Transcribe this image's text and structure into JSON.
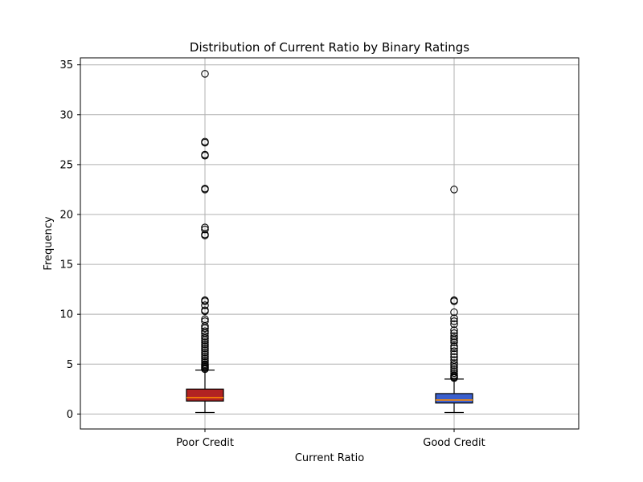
{
  "chart_data": {
    "type": "boxplot",
    "title": "Distribution of Current Ratio by Binary Ratings",
    "xlabel": "Current Ratio",
    "ylabel": "Frequency",
    "ylim": [
      -1.5,
      35.7
    ],
    "yticks": [
      0,
      5,
      10,
      15,
      20,
      25,
      30,
      35
    ],
    "grid": true,
    "categories": [
      "Poor Credit",
      "Good Credit"
    ],
    "series": [
      {
        "box_color": "#b22222",
        "median_color": "#ff8c00",
        "whisker_low": 0.15,
        "q1": 1.3,
        "median": 1.65,
        "q3": 2.5,
        "whisker_high": 4.4,
        "outliers": [
          34.1,
          27.2,
          27.3,
          25.9,
          26.0,
          22.5,
          22.6,
          18.7,
          18.5,
          18.0,
          17.9,
          11.4,
          11.3,
          10.9,
          10.4,
          10.3,
          9.5,
          9.3,
          8.8,
          8.6,
          8.3,
          8.1,
          7.8,
          7.6,
          7.4,
          7.2,
          7.0,
          6.8,
          6.6,
          6.4,
          6.2,
          6.0,
          5.8,
          5.6,
          5.4,
          5.2,
          5.0,
          4.9,
          4.8,
          4.7,
          4.6,
          4.5
        ]
      },
      {
        "box_color": "#3a5fcd",
        "median_color": "#ff8c00",
        "whisker_low": 0.15,
        "q1": 1.1,
        "median": 1.4,
        "q3": 2.05,
        "whisker_high": 3.5,
        "outliers": [
          22.5,
          11.4,
          11.3,
          10.2,
          9.6,
          9.3,
          9.0,
          8.4,
          8.1,
          7.8,
          7.6,
          7.4,
          7.2,
          6.8,
          6.6,
          6.3,
          6.0,
          5.7,
          5.4,
          5.1,
          4.9,
          4.7,
          4.5,
          4.3,
          4.1,
          3.9,
          3.8,
          3.7,
          3.6
        ]
      }
    ]
  }
}
